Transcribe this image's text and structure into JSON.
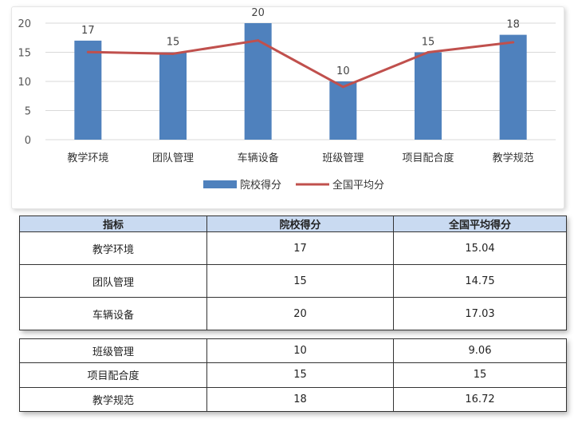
{
  "chart_data": {
    "type": "bar+line",
    "categories": [
      "教学环境",
      "团队管理",
      "车辆设备",
      "班级管理",
      "项目配合度",
      "教学规范"
    ],
    "series": [
      {
        "name": "院校得分",
        "type": "bar",
        "values": [
          17,
          15,
          20,
          10,
          15,
          18
        ],
        "color": "#4f81bd"
      },
      {
        "name": "全国平均分",
        "type": "line",
        "values": [
          15.04,
          14.75,
          17.03,
          9.06,
          15,
          16.72
        ],
        "color": "#c0504d"
      }
    ],
    "bar_labels": [
      "17",
      "15",
      "20",
      "10",
      "15",
      "18"
    ],
    "yticks": [
      "0",
      "5",
      "10",
      "15",
      "20"
    ],
    "ylim": [
      0,
      20
    ],
    "grid": true,
    "legend": "bottom"
  },
  "table": {
    "headers": [
      "指标",
      "院校得分",
      "全国平均得分"
    ],
    "rows_top": [
      [
        "教学环境",
        "17",
        "15.04"
      ],
      [
        "团队管理",
        "15",
        "14.75"
      ],
      [
        "车辆设备",
        "20",
        "17.03"
      ]
    ],
    "rows_bottom": [
      [
        "班级管理",
        "10",
        "9.06"
      ],
      [
        "项目配合度",
        "15",
        "15"
      ],
      [
        "教学规范",
        "18",
        "16.72"
      ]
    ]
  }
}
